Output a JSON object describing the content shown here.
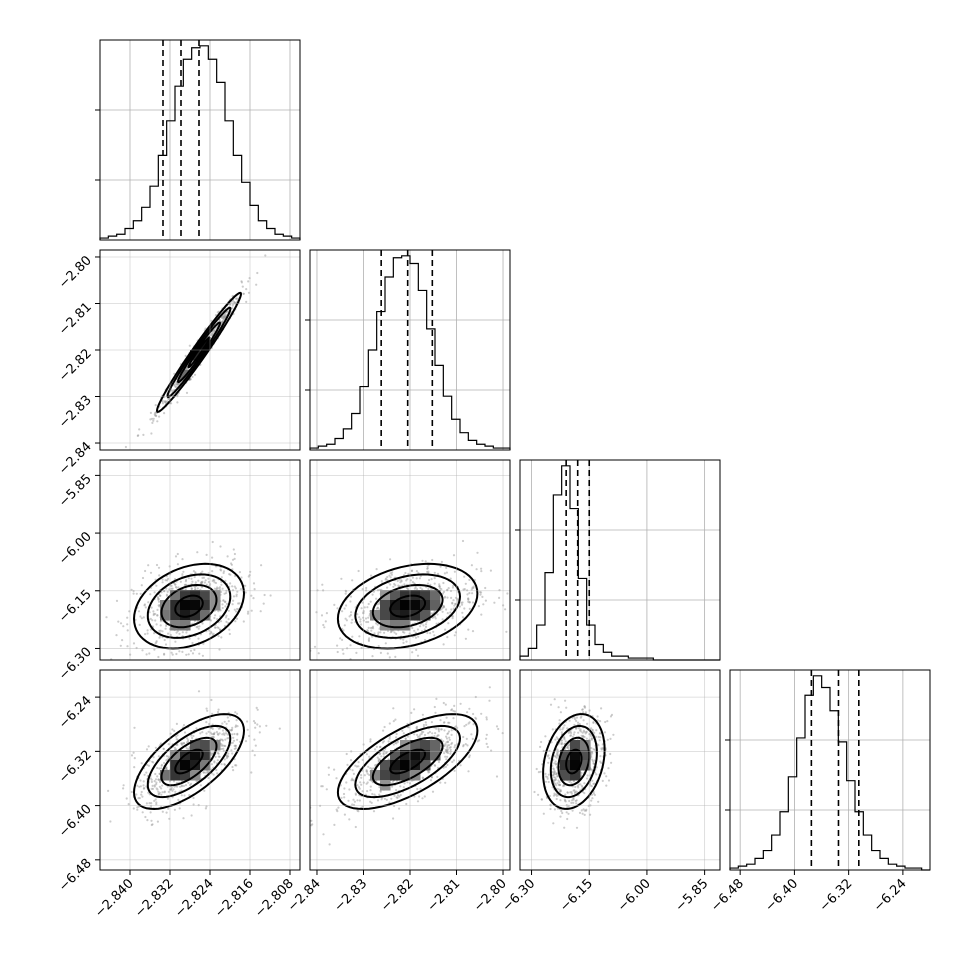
{
  "chart_data": {
    "type": "scatter",
    "title": "",
    "parameters": [
      "",
      "",
      "",
      ""
    ],
    "grid": true,
    "axes": [
      {
        "ticks": [
          -2.84,
          -2.832,
          -2.824,
          -2.816,
          -2.808
        ],
        "tick_labels": [
          "−2.840",
          "−2.832",
          "−2.824",
          "−2.816",
          "−2.808"
        ],
        "range": [
          -2.846,
          -2.806
        ]
      },
      {
        "ticks": [
          -2.84,
          -2.83,
          -2.82,
          -2.81,
          -2.8
        ],
        "tick_labels": [
          "−2.84",
          "−2.83",
          "−2.82",
          "−2.81",
          "−2.80"
        ],
        "range": [
          -2.8415,
          -2.7985
        ]
      },
      {
        "ticks": [
          -6.3,
          -6.15,
          -6.0,
          -5.85
        ],
        "tick_labels": [
          "−6.30",
          "−6.15",
          "−6.00",
          "−5.85"
        ],
        "range": [
          -6.33,
          -5.81
        ]
      },
      {
        "ticks": [
          -6.48,
          -6.4,
          -6.32,
          -6.24
        ],
        "tick_labels": [
          "−6.48",
          "−6.40",
          "−6.32",
          "−6.24"
        ],
        "range": [
          -6.495,
          -6.2
        ]
      }
    ],
    "quantiles": [
      [
        -2.8334,
        -2.8298,
        -2.8262
      ],
      [
        -2.8262,
        -2.8205,
        -2.8152
      ],
      [
        -6.21,
        -6.18,
        -6.15
      ],
      [
        -6.375,
        -6.335,
        -6.305
      ]
    ],
    "marginals": [
      {
        "bin_edges_range": [
          -2.846,
          -2.806
        ],
        "counts": [
          1,
          2,
          3,
          6,
          10,
          17,
          28,
          44,
          62,
          80,
          94,
          100,
          101,
          94,
          82,
          62,
          44,
          30,
          18,
          10,
          6,
          3,
          2,
          1
        ]
      },
      {
        "bin_edges_range": [
          -2.8415,
          -2.7985
        ],
        "counts": [
          1,
          2,
          3,
          6,
          11,
          19,
          33,
          52,
          72,
          90,
          100,
          101,
          97,
          83,
          63,
          44,
          28,
          16,
          9,
          5,
          3,
          2,
          1,
          1
        ]
      },
      {
        "bin_edges_range": [
          -6.33,
          -5.81
        ],
        "counts": [
          2,
          6,
          18,
          45,
          85,
          100,
          78,
          42,
          18,
          8,
          4,
          2,
          2,
          1,
          1,
          1,
          0,
          0,
          0,
          0,
          0,
          0,
          0,
          0
        ]
      },
      {
        "bin_edges_range": [
          -6.495,
          -6.2
        ],
        "counts": [
          1,
          2,
          3,
          6,
          10,
          18,
          30,
          48,
          68,
          90,
          100,
          94,
          82,
          66,
          46,
          30,
          18,
          10,
          6,
          3,
          2,
          1,
          1,
          0
        ]
      }
    ],
    "pairs": [
      {
        "x_param": 0,
        "y_param": 1,
        "center": [
          -2.8262,
          -2.8205
        ],
        "spread": [
          0.0042,
          0.0064
        ],
        "correlation": 0.98
      },
      {
        "x_param": 0,
        "y_param": 2,
        "center": [
          -2.8282,
          -6.19
        ],
        "spread": [
          0.0055,
          0.055
        ],
        "correlation": 0.3
      },
      {
        "x_param": 1,
        "y_param": 2,
        "center": [
          -2.8205,
          -6.19
        ],
        "spread": [
          0.0075,
          0.055
        ],
        "correlation": 0.3
      },
      {
        "x_param": 0,
        "y_param": 3,
        "center": [
          -2.8282,
          -6.335
        ],
        "spread": [
          0.0055,
          0.035
        ],
        "correlation": 0.65
      },
      {
        "x_param": 1,
        "y_param": 3,
        "center": [
          -2.8205,
          -6.335
        ],
        "spread": [
          0.0075,
          0.035
        ],
        "correlation": 0.65
      },
      {
        "x_param": 2,
        "y_param": 3,
        "center": [
          -6.19,
          -6.335
        ],
        "spread": [
          0.04,
          0.035
        ],
        "correlation": 0.25
      }
    ],
    "contour_levels_sigma": [
      0.5,
      1.0,
      1.5,
      2.0
    ],
    "colors": {
      "line": "#000000",
      "points": "#9a9a9a",
      "grid": "#b0b0b0",
      "density_max": "#000000"
    }
  }
}
